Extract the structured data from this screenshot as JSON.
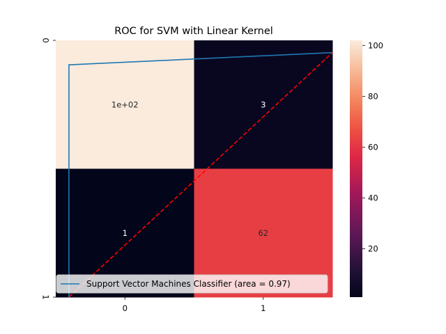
{
  "chart_data": {
    "type": "heatmap",
    "title": "ROC for SVM with Linear Kernel",
    "xlabel": "",
    "ylabel": "",
    "x_tick_labels": [
      "0",
      "1"
    ],
    "y_tick_labels": [
      "0",
      "1"
    ],
    "matrix": [
      [
        102,
        3
      ],
      [
        1,
        62
      ]
    ],
    "cell_annotations": [
      [
        "1e+02",
        "3"
      ],
      [
        "1",
        "62"
      ]
    ],
    "colorbar": {
      "min": 1,
      "max": 102,
      "ticks": [
        20,
        40,
        60,
        80,
        100
      ],
      "colormap": "rocket"
    },
    "overlay_lines": [
      {
        "name": "Support Vector Machines Classifier (area = 0.97)",
        "color": "#1f77b4",
        "style": "solid",
        "x": [
          0.0,
          0.0,
          1.0
        ],
        "y": [
          0.0,
          0.95,
          1.0
        ]
      },
      {
        "name": "",
        "color": "#ff0000",
        "style": "dashed",
        "x": [
          0.0,
          1.0
        ],
        "y": [
          0.0,
          1.0
        ]
      }
    ],
    "overlay_xlim": [
      -0.05,
      1.0
    ],
    "overlay_ylim": [
      0.0,
      1.05
    ],
    "legend": {
      "entries": [
        "Support Vector Machines Classifier (area = 0.97)"
      ],
      "placement": "lower-left"
    },
    "grid": false
  }
}
